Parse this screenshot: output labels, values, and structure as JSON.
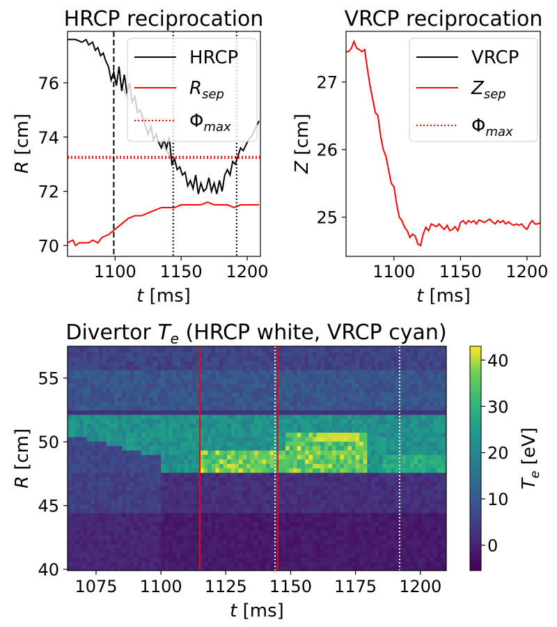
{
  "chart_data": [
    {
      "id": "hrcp",
      "type": "line",
      "title": "HRCP reciprocation",
      "xlabel": "t [ms]",
      "ylabel": "R [cm]",
      "xlim": [
        1064,
        1210
      ],
      "ylim": [
        69.6,
        77.9
      ],
      "xticks": [
        1100,
        1150,
        1200
      ],
      "yticks": [
        70,
        72,
        74,
        76
      ],
      "legend": {
        "position": "top-right",
        "entries": [
          "HRCP",
          "R_sep",
          "Φ_max"
        ]
      },
      "series": [
        {
          "name": "HRCP",
          "color": "#000000",
          "x": [
            1064,
            1070,
            1075,
            1078,
            1080,
            1083,
            1085,
            1087,
            1089,
            1091,
            1093,
            1095,
            1097,
            1099,
            1101,
            1103,
            1105,
            1107,
            1109,
            1111,
            1113,
            1115,
            1117,
            1119,
            1121,
            1123,
            1125,
            1127,
            1129,
            1131,
            1133,
            1135,
            1137,
            1139,
            1141,
            1143,
            1145,
            1147,
            1149,
            1151,
            1153,
            1155,
            1157,
            1159,
            1161,
            1163,
            1165,
            1167,
            1169,
            1171,
            1173,
            1175,
            1177,
            1179,
            1181,
            1183,
            1185,
            1187,
            1189,
            1191,
            1193,
            1195,
            1197,
            1199,
            1201,
            1203,
            1205,
            1207,
            1209
          ],
          "y": [
            77.6,
            77.6,
            77.5,
            77.6,
            77.4,
            77.5,
            77.2,
            77.3,
            77.0,
            77.1,
            76.8,
            76.6,
            76.1,
            76.4,
            75.9,
            76.6,
            75.7,
            76.3,
            75.6,
            76.0,
            75.3,
            75.5,
            74.9,
            75.0,
            74.7,
            74.4,
            74.1,
            74.4,
            73.9,
            74.1,
            73.8,
            73.6,
            73.9,
            73.6,
            74.0,
            73.0,
            73.2,
            72.8,
            72.9,
            72.6,
            72.7,
            72.2,
            72.4,
            72.1,
            72.6,
            71.9,
            72.3,
            72.0,
            72.1,
            72.5,
            72.0,
            72.3,
            71.9,
            72.4,
            72.0,
            72.6,
            72.8,
            72.6,
            73.1,
            73.0,
            73.3,
            73.6,
            73.5,
            73.7,
            73.9,
            74.0,
            74.2,
            74.4,
            74.6
          ]
        },
        {
          "name": "R_sep",
          "color": "#ff0000",
          "x": [
            1064,
            1068,
            1070,
            1073,
            1076,
            1080,
            1083,
            1087,
            1090,
            1095,
            1100,
            1105,
            1110,
            1115,
            1120,
            1125,
            1130,
            1135,
            1140,
            1145,
            1150,
            1155,
            1160,
            1165,
            1170,
            1175,
            1180,
            1185,
            1190,
            1195,
            1200,
            1205,
            1209
          ],
          "y": [
            70.1,
            70.2,
            70.0,
            70.1,
            70.1,
            70.1,
            70.2,
            70.1,
            70.3,
            70.4,
            70.6,
            70.8,
            71.0,
            71.1,
            71.1,
            71.2,
            71.3,
            71.4,
            71.4,
            71.4,
            71.5,
            71.5,
            71.5,
            71.5,
            71.6,
            71.5,
            71.5,
            71.5,
            71.4,
            71.5,
            71.5,
            71.5,
            71.5
          ]
        },
        {
          "name": "Φ_max",
          "color": "#ff0000",
          "style": "dotted",
          "hlines": [
            73.28,
            73.22
          ]
        },
        {
          "name": "HRCP inner branch",
          "color": "#c8c8c8",
          "x": [
            1103,
            1106,
            1109,
            1112,
            1115,
            1118,
            1121,
            1124,
            1127,
            1130,
            1133,
            1136,
            1139,
            1142,
            1145
          ],
          "y": [
            76.2,
            75.8,
            75.5,
            75.3,
            75.2,
            75.0,
            74.8,
            74.6,
            74.4,
            74.2,
            73.9,
            73.7,
            73.5,
            73.3,
            73.0
          ]
        }
      ],
      "vlines": [
        {
          "x": 1099,
          "style": "dashed",
          "color": "#000000"
        },
        {
          "x": 1144,
          "style": "dotted",
          "color": "#000000"
        },
        {
          "x": 1192,
          "style": "dotted",
          "color": "#000000"
        }
      ]
    },
    {
      "id": "vrcp",
      "type": "line",
      "title": "VRCP reciprocation",
      "xlabel": "t [ms]",
      "ylabel": "Z [cm]",
      "xlim": [
        1064,
        1210
      ],
      "ylim": [
        24.42,
        27.75
      ],
      "xticks": [
        1100,
        1150,
        1200
      ],
      "yticks": [
        25,
        26,
        27
      ],
      "legend": {
        "position": "top-right",
        "entries": [
          "VRCP",
          "Z_sep",
          "Φ_max"
        ]
      },
      "series": [
        {
          "name": "Z_sep",
          "color": "#ff0000",
          "x": [
            1064,
            1066,
            1068,
            1070,
            1072,
            1074,
            1076,
            1078,
            1080,
            1082,
            1084,
            1086,
            1088,
            1090,
            1092,
            1094,
            1096,
            1098,
            1100,
            1102,
            1104,
            1106,
            1108,
            1110,
            1112,
            1114,
            1116,
            1118,
            1120,
            1122,
            1124,
            1126,
            1128,
            1130,
            1132,
            1134,
            1136,
            1138,
            1140,
            1142,
            1144,
            1146,
            1148,
            1150,
            1152,
            1154,
            1156,
            1158,
            1160,
            1162,
            1164,
            1166,
            1168,
            1170,
            1172,
            1174,
            1176,
            1178,
            1180,
            1182,
            1184,
            1186,
            1188,
            1190,
            1192,
            1194,
            1196,
            1198,
            1200,
            1202,
            1204,
            1206,
            1208,
            1210
          ],
          "y": [
            27.45,
            27.45,
            27.5,
            27.6,
            27.5,
            27.48,
            27.45,
            27.48,
            27.2,
            26.95,
            26.75,
            26.55,
            26.5,
            26.2,
            26.0,
            25.9,
            25.7,
            25.5,
            25.45,
            25.2,
            25.0,
            24.95,
            24.85,
            24.8,
            24.7,
            24.75,
            24.72,
            24.6,
            24.58,
            24.75,
            24.85,
            24.8,
            24.9,
            24.88,
            24.86,
            24.9,
            24.85,
            24.82,
            24.88,
            24.8,
            24.82,
            24.86,
            24.8,
            24.92,
            24.95,
            24.9,
            24.95,
            24.92,
            24.95,
            24.9,
            24.96,
            24.94,
            24.92,
            24.95,
            24.97,
            24.93,
            24.9,
            24.95,
            24.92,
            24.95,
            24.9,
            24.93,
            24.9,
            24.88,
            24.9,
            24.88,
            24.9,
            24.85,
            24.82,
            24.9,
            24.95,
            24.9,
            24.9,
            24.92
          ]
        }
      ]
    },
    {
      "id": "divertor",
      "type": "heatmap",
      "title": "Divertor T_e (HRCP white, VRCP cyan)",
      "xlabel": "t [ms]",
      "ylabel": "R [cm]",
      "xlim": [
        1064,
        1210
      ],
      "ylim": [
        39.9,
        57.5
      ],
      "xticks": [
        1075,
        1100,
        1125,
        1150,
        1175,
        1200
      ],
      "yticks": [
        40,
        45,
        50,
        55
      ],
      "colorbar": {
        "label": "T_e [eV]",
        "min": -5.5,
        "max": 43,
        "ticks": [
          0,
          10,
          20,
          30,
          40
        ],
        "colormap": "viridis"
      },
      "vlines": [
        {
          "x": 1115,
          "style": "solid",
          "color": "#ff0000"
        },
        {
          "x": 1144,
          "style": "dotted",
          "color": "#ffffff"
        },
        {
          "x": 1145,
          "style": "solid",
          "color": "#ff0000"
        },
        {
          "x": 1192,
          "style": "dotted",
          "color": "#ffffff"
        }
      ],
      "hot_band": {
        "r_low": 47.6,
        "r_high": 52.0,
        "peak_t": [
          1120,
          1176
        ],
        "peak_value": 42
      }
    }
  ]
}
